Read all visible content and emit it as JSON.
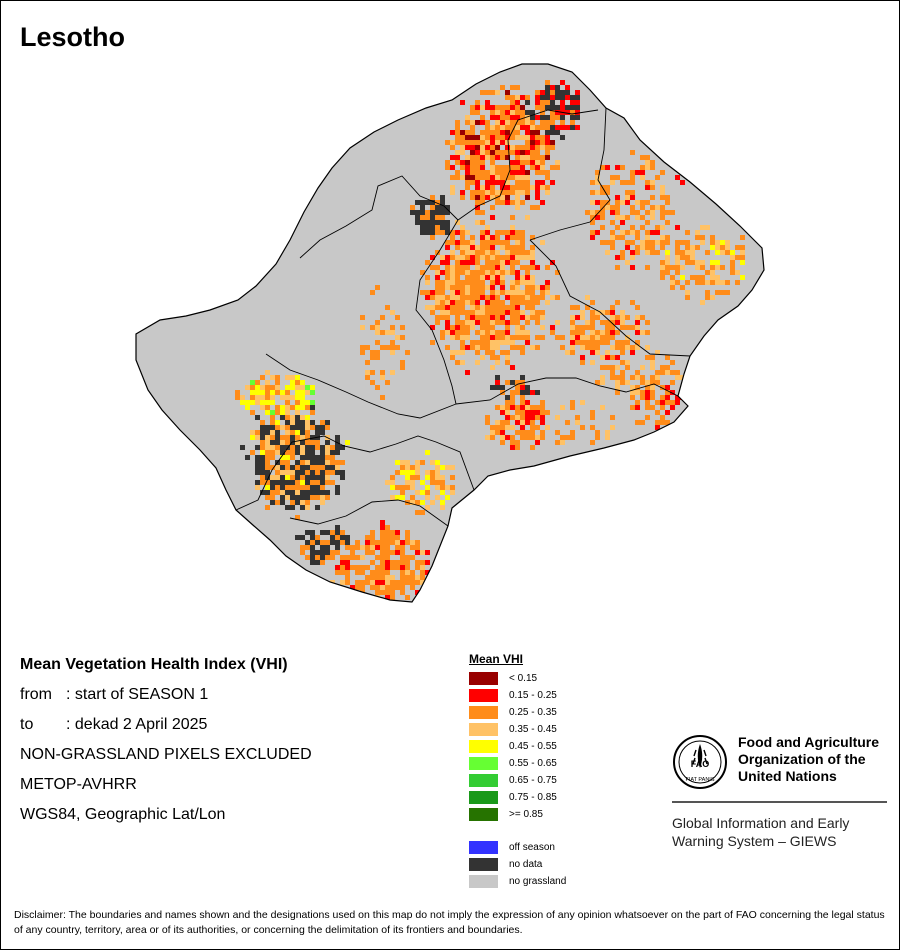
{
  "map": {
    "title": "Lesotho",
    "info": {
      "heading": "Mean Vegetation Health Index (VHI)",
      "from_label": "from",
      "from_value": ": start of SEASON 1",
      "to_label": "to",
      "to_value": ": dekad 2 April 2025",
      "exclusion": "NON-GRASSLAND PIXELS EXCLUDED",
      "sensor": "METOP-AVHRR",
      "projection": "WGS84, Geographic Lat/Lon"
    },
    "legend": {
      "title": "Mean VHI",
      "classes": [
        {
          "label": "< 0.15",
          "color": "#990000"
        },
        {
          "label": "0.15 - 0.25",
          "color": "#FF0000"
        },
        {
          "label": "0.25 - 0.35",
          "color": "#FF8C1A"
        },
        {
          "label": "0.35 - 0.45",
          "color": "#FFC266"
        },
        {
          "label": "0.45 - 0.55",
          "color": "#FFFF00"
        },
        {
          "label": "0.55 - 0.65",
          "color": "#66FF33"
        },
        {
          "label": "0.65 - 0.75",
          "color": "#33CC33"
        },
        {
          "label": "0.75 - 0.85",
          "color": "#1A991A"
        },
        {
          "label": ">= 0.85",
          "color": "#267300"
        }
      ],
      "other": [
        {
          "label": "off season",
          "color": "#3333FF"
        },
        {
          "label": "no data",
          "color": "#333333"
        },
        {
          "label": "no grassland",
          "color": "#C8C8C8"
        }
      ]
    },
    "org": {
      "logo_text": "FAO",
      "logo_sub": "FIAT PANIS",
      "name_line1": "Food and Agriculture",
      "name_line2": "Organization of the",
      "name_line3": "United Nations",
      "system_line1": "Global Information and Early",
      "system_line2": "Warning System – GIEWS"
    },
    "disclaimer": "Disclaimer: The boundaries and names shown and the designations used on this map do not imply the expression of any opinion whatsoever on the part of FAO concerning the legal status of any country, territory, area or of its authorities, or concerning the delimitation of its frontiers and boundaries.",
    "colors": {
      "base": "#C8C8C8",
      "border": "#000000"
    }
  }
}
